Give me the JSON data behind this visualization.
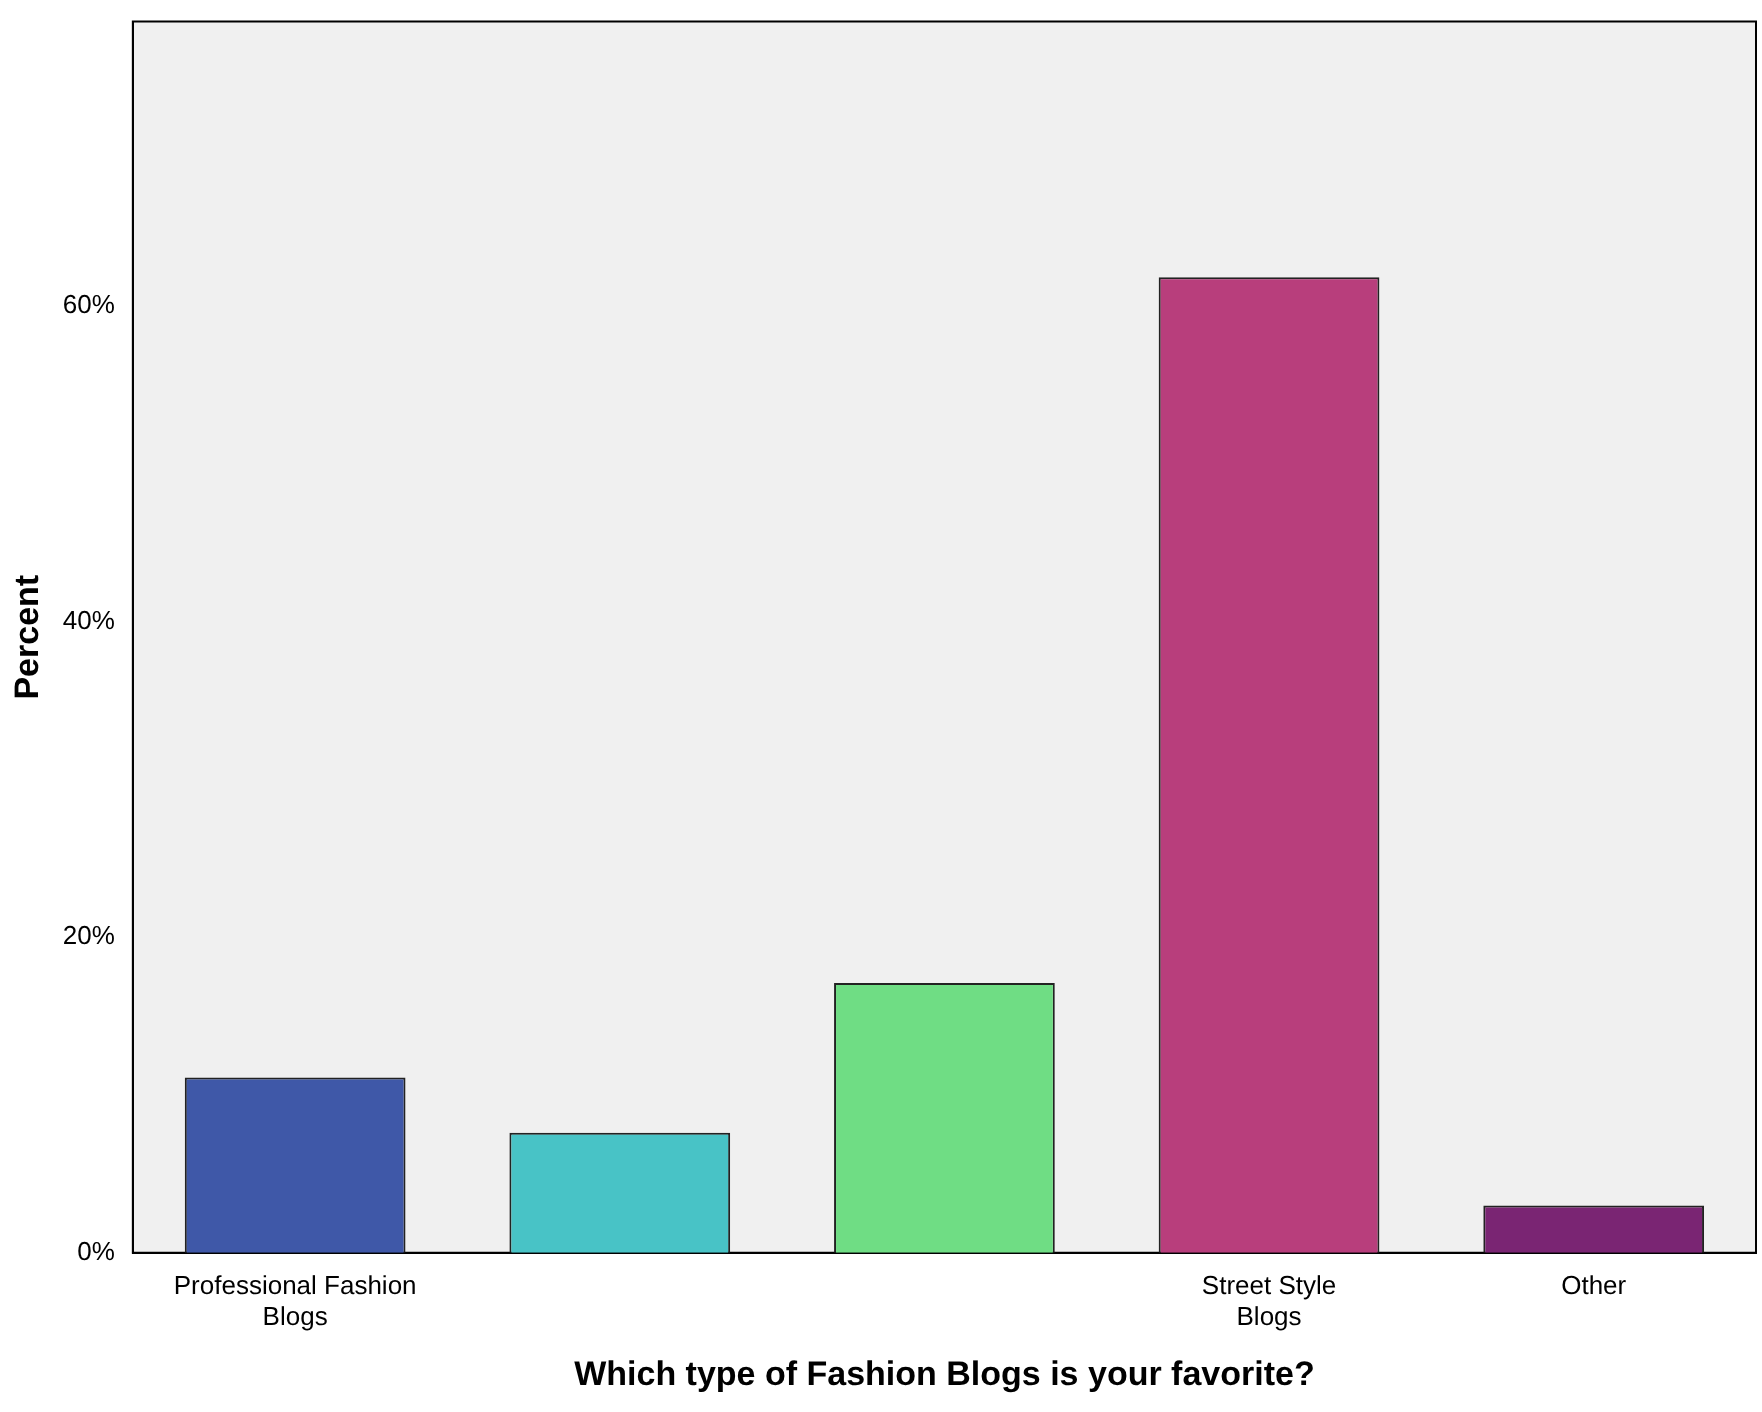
{
  "chart_data": {
    "type": "bar",
    "xlabel": "Which type of Fashion Blogs is your favorite?",
    "ylabel": "Percent",
    "categories": [
      "Professional Fashion Blogs",
      null,
      null,
      "Street Style Blogs",
      "Other"
    ],
    "values": [
      11.1,
      7.6,
      17.1,
      61.8,
      3.0
    ],
    "colors": [
      "#3f58a8",
      "#48c3c6",
      "#6fdd84",
      "#b83e7c",
      "#7a2573"
    ],
    "ylim": [
      0,
      78
    ],
    "yticks": [
      {
        "value": 0,
        "label": "0%"
      },
      {
        "value": 20,
        "label": "20%"
      },
      {
        "value": 40,
        "label": "40%"
      },
      {
        "value": 60,
        "label": "60%"
      }
    ],
    "grid": false,
    "legend": false
  }
}
